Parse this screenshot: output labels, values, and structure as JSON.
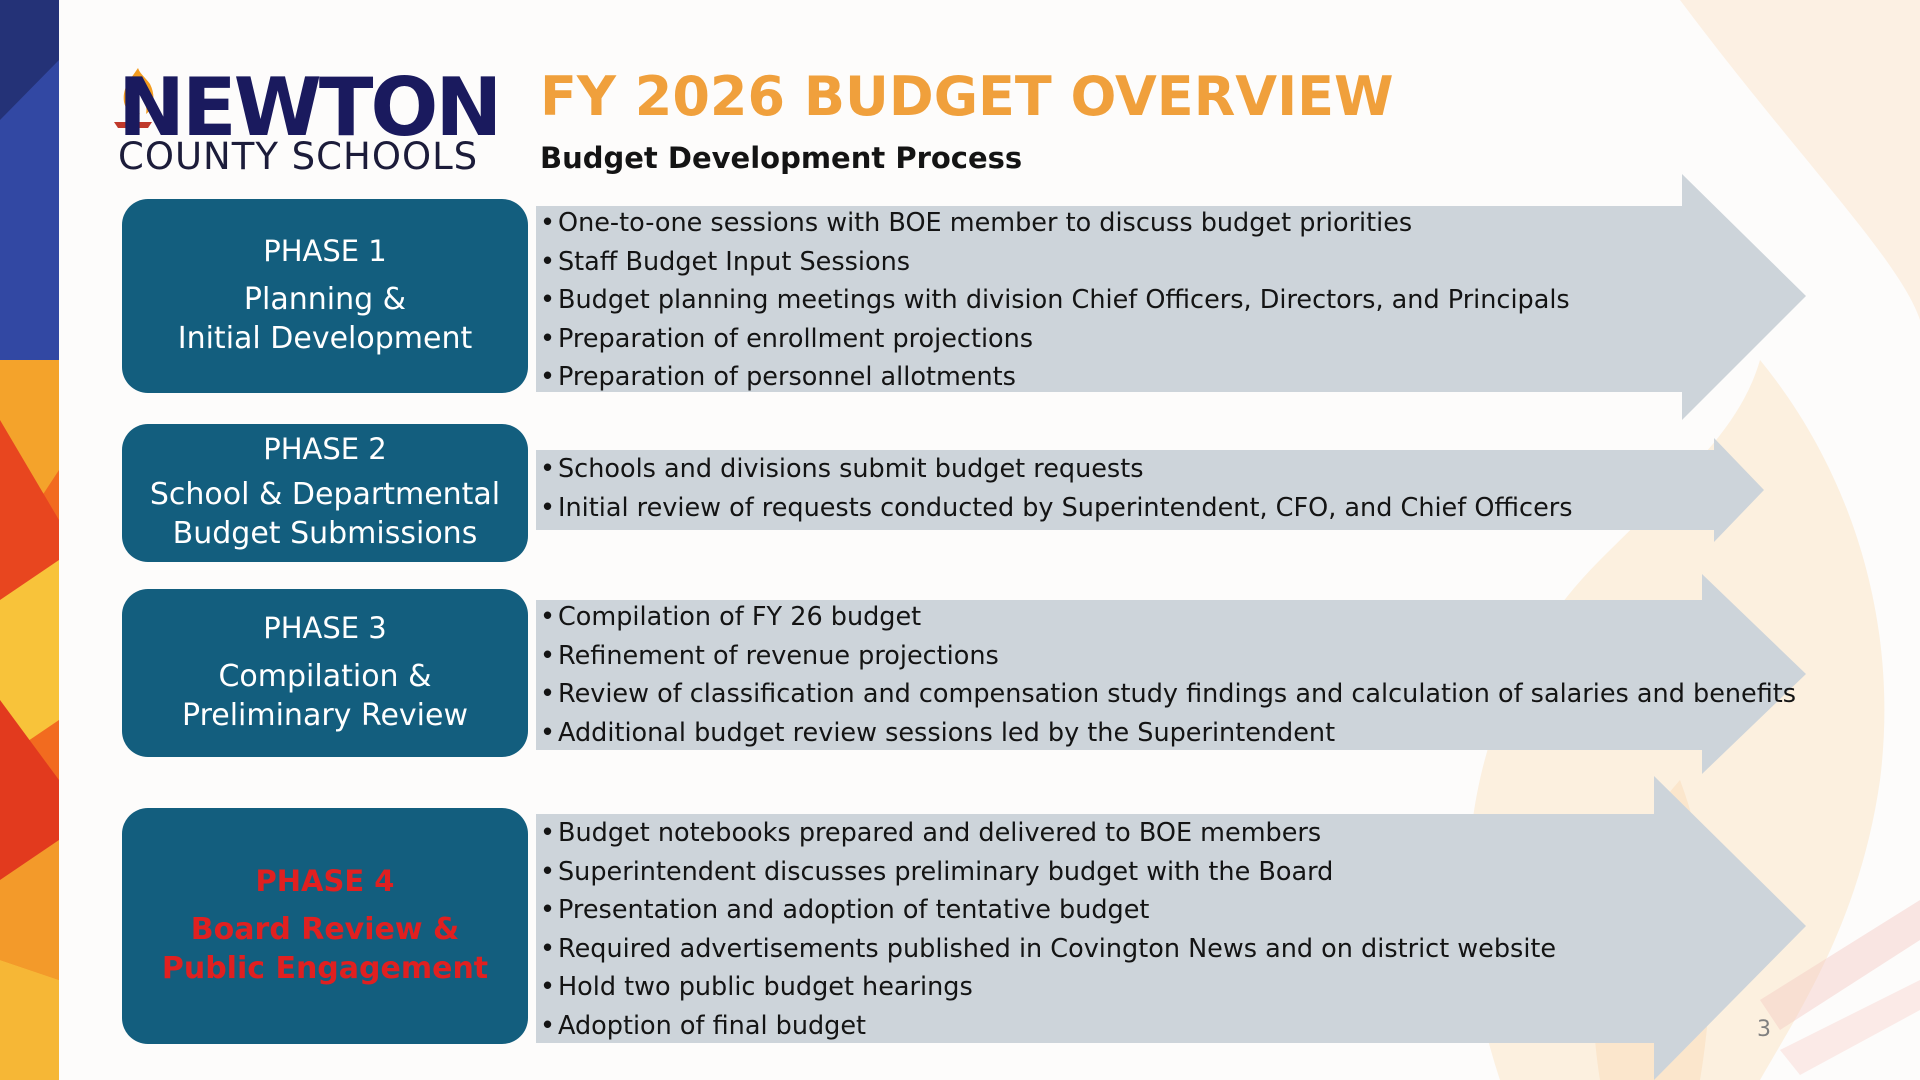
{
  "logo": {
    "wordmark": "NEWTON",
    "subtitle": "COUNTY SCHOOLS"
  },
  "title": "FY 2026 BUDGET OVERVIEW",
  "subtitle": "Budget Development Process",
  "phases": [
    {
      "number": "PHASE 1",
      "name_lines": [
        "Planning &",
        "Initial Development"
      ],
      "bullets": [
        "One-to-one sessions with BOE member to discuss budget priorities",
        "Staff Budget Input Sessions",
        "Budget planning meetings with division Chief Officers, Directors, and Principals",
        "Preparation of enrollment projections",
        "Preparation of personnel allotments"
      ]
    },
    {
      "number": "PHASE 2",
      "name_lines": [
        "School & Departmental",
        "Budget Submissions"
      ],
      "bullets": [
        "Schools and divisions submit budget requests",
        "Initial review of requests conducted by Superintendent, CFO, and Chief Officers"
      ]
    },
    {
      "number": "PHASE 3",
      "name_lines": [
        "Compilation &",
        "Preliminary Review"
      ],
      "bullets": [
        "Compilation of FY 26 budget",
        "Refinement of revenue projections",
        "Review of classification and compensation study findings and calculation of salaries and benefits",
        "Additional budget review sessions led by the Superintendent"
      ]
    },
    {
      "number": "PHASE 4",
      "name_lines": [
        "Board Review &",
        "Public Engagement"
      ],
      "bullets": [
        "Budget notebooks prepared and delivered to BOE members",
        "Superintendent discusses preliminary budget with the Board",
        "Presentation and adoption of tentative budget",
        "Required advertisements published in Covington News and on district website",
        "Hold two public budget hearings",
        "Adoption of final budget"
      ]
    }
  ],
  "colors": {
    "title": "#f0a03c",
    "phase_box": "#135e7e",
    "arrow": "#cdd4da",
    "highlight_text": "#e02020"
  },
  "page_number": "3"
}
